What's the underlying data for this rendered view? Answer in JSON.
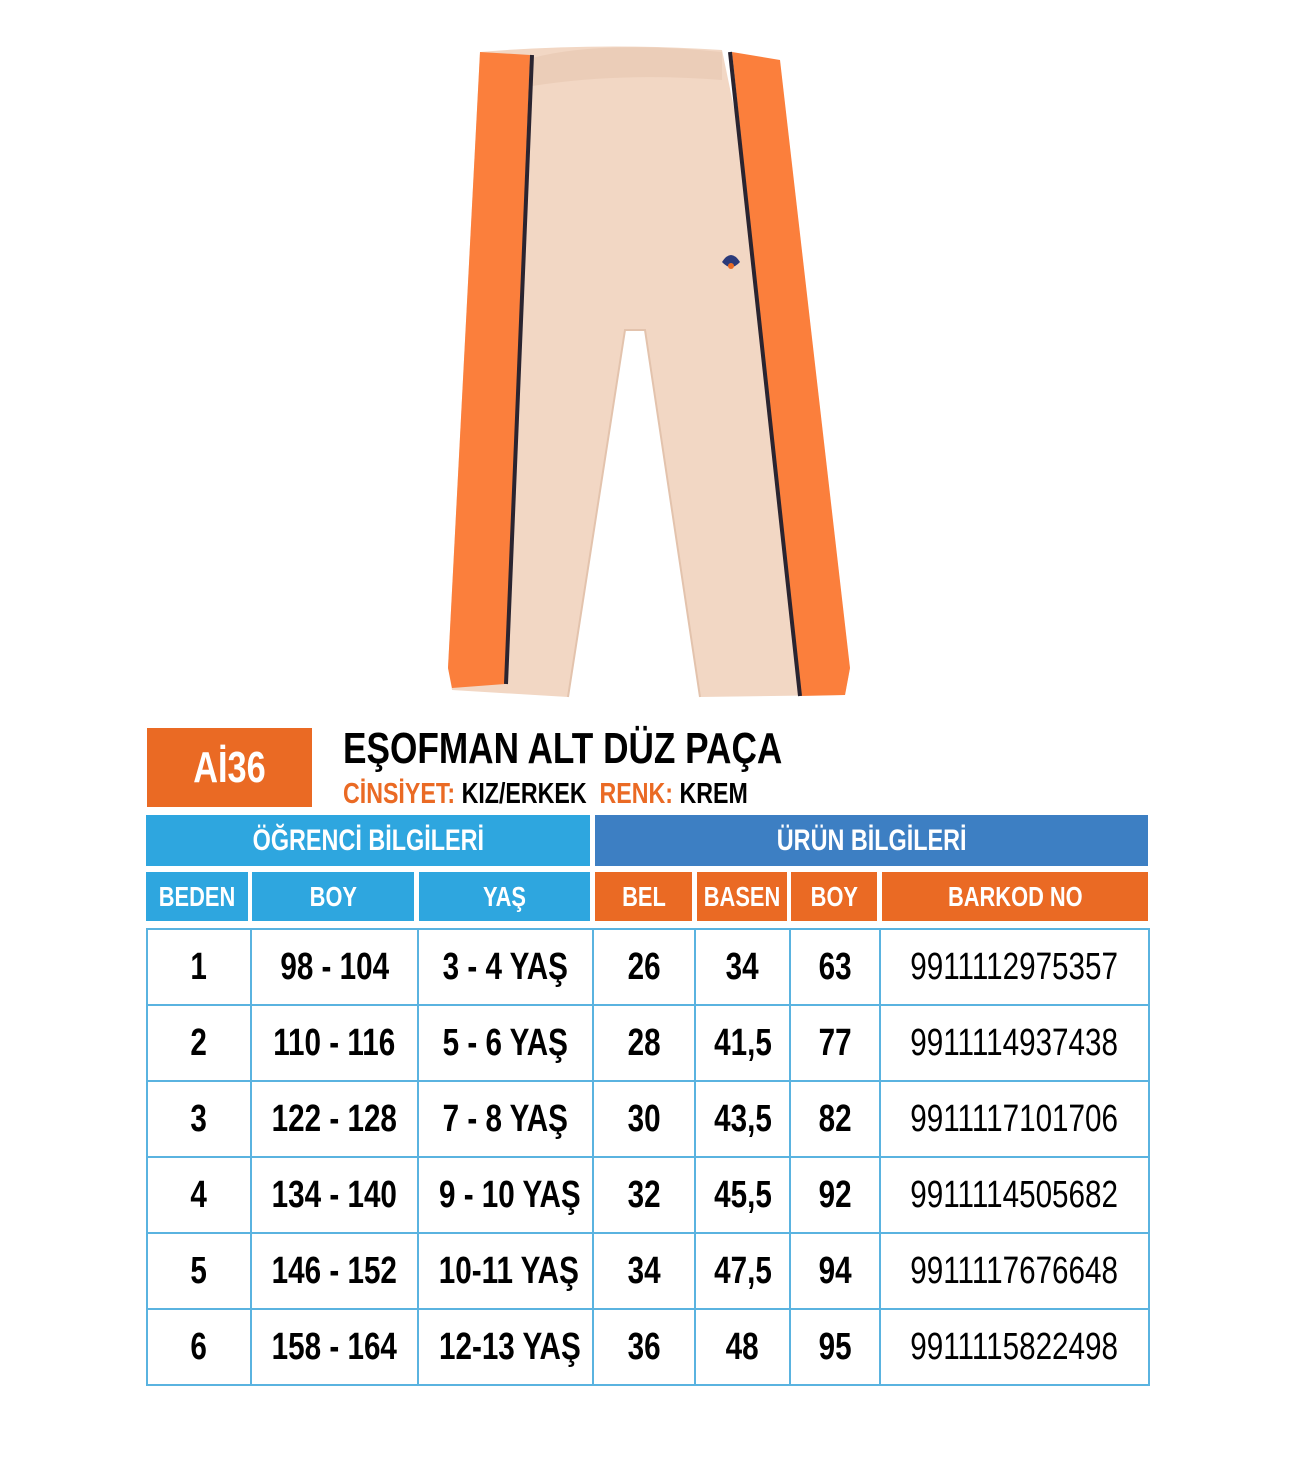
{
  "product": {
    "code": "Aİ36",
    "title": "EŞOFMAN ALT DÜZ PAÇA",
    "gender_label": "CİNSİYET:",
    "gender_value": "KIZ/ERKEK",
    "color_label": "RENK:",
    "color_value": "KREM"
  },
  "colors": {
    "accent_orange": "#ea6a24",
    "student_blue": "#2ea6df",
    "product_blue": "#3d7fc3",
    "garment": "#f2d7c4"
  },
  "table": {
    "section_student": "ÖĞRENCİ BİLGİLERİ",
    "section_product": "ÜRÜN BİLGİLERİ",
    "columns": [
      "BEDEN",
      "BOY",
      "YAŞ",
      "BEL",
      "BASEN",
      "BOY",
      "BARKOD NO"
    ],
    "rows": [
      [
        "1",
        "98 - 104",
        "3 - 4 YAŞ",
        "26",
        "34",
        "63",
        "9911112975357"
      ],
      [
        "2",
        "110 - 116",
        "5 - 6 YAŞ",
        "28",
        "41,5",
        "77",
        "9911114937438"
      ],
      [
        "3",
        "122 - 128",
        "7 - 8 YAŞ",
        "30",
        "43,5",
        "82",
        "9911117101706"
      ],
      [
        "4",
        "134 - 140",
        "9 - 10 YAŞ",
        "32",
        "45,5",
        "92",
        "9911114505682"
      ],
      [
        "5",
        "146 - 152",
        "10-11 YAŞ",
        "34",
        "47,5",
        "94",
        "9911117676648"
      ],
      [
        "6",
        "158 - 164",
        "12-13 YAŞ",
        "36",
        "48",
        "95",
        "9911115822498"
      ]
    ]
  }
}
